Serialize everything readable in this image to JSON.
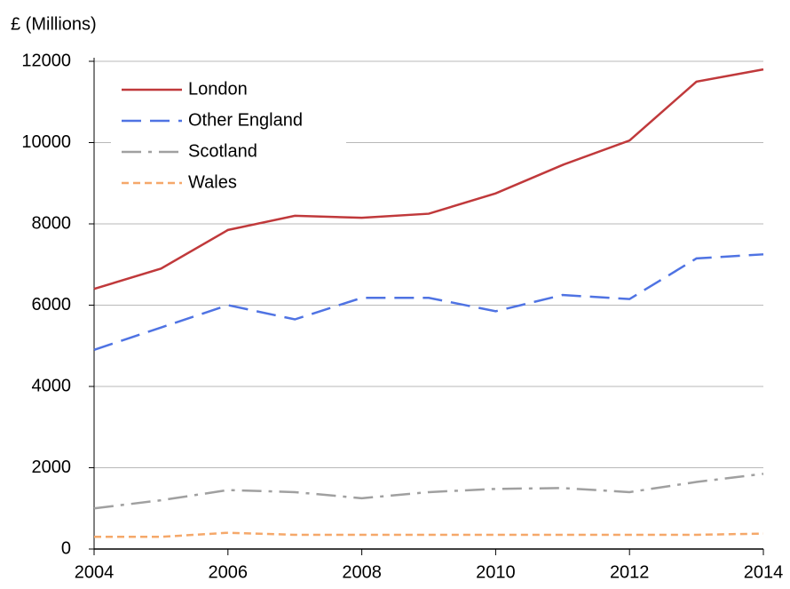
{
  "chart_data": {
    "type": "line",
    "y_label": "£ (Millions)",
    "x": [
      2004,
      2005,
      2006,
      2007,
      2008,
      2009,
      2010,
      2011,
      2012,
      2013,
      2014
    ],
    "xlim": [
      2004,
      2014
    ],
    "xticks": [
      2004,
      2006,
      2008,
      2010,
      2012,
      2014
    ],
    "ylim": [
      0,
      12000
    ],
    "yticks": [
      0,
      2000,
      4000,
      6000,
      8000,
      10000,
      12000
    ],
    "grid": true,
    "legend": "upper left",
    "series": [
      {
        "name": "London",
        "color": "#c0393b",
        "dash": "solid",
        "values": [
          6400,
          6900,
          7850,
          8200,
          8150,
          8250,
          8750,
          9450,
          10050,
          11500,
          11800
        ]
      },
      {
        "name": "Other England",
        "color": "#4f73e3",
        "dash": "dashed",
        "values": [
          4900,
          5450,
          6000,
          5650,
          6180,
          6180,
          5850,
          6250,
          6150,
          7150,
          7250
        ]
      },
      {
        "name": "Scotland",
        "color": "#a0a0a0",
        "dash": "dashdot",
        "values": [
          1000,
          1200,
          1450,
          1400,
          1250,
          1400,
          1480,
          1500,
          1400,
          1650,
          1850
        ]
      },
      {
        "name": "Wales",
        "color": "#f5a86a",
        "dash": "dotted",
        "values": [
          300,
          300,
          400,
          350,
          350,
          350,
          350,
          350,
          350,
          350,
          380
        ]
      }
    ]
  }
}
